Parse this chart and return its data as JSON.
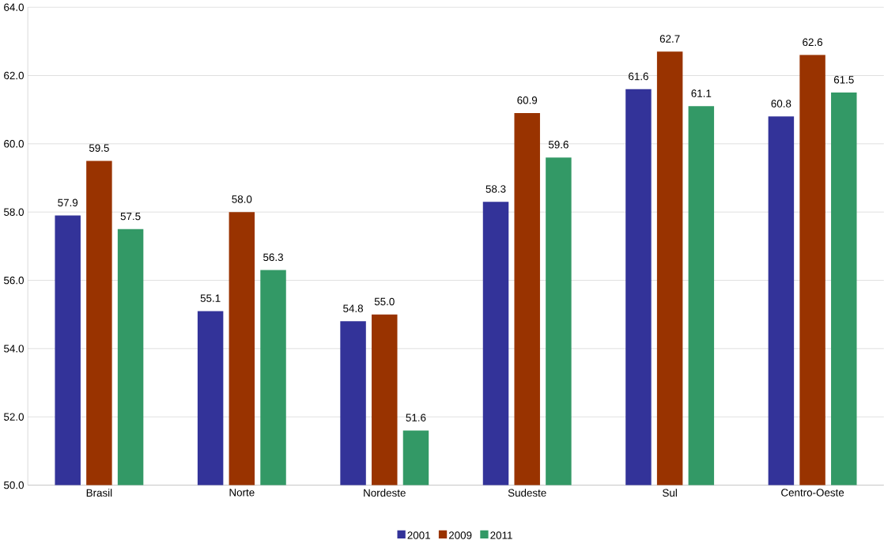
{
  "chart_data": {
    "type": "bar",
    "categories": [
      "Brasil",
      "Norte",
      "Nordeste",
      "Sudeste",
      "Sul",
      "Centro-Oeste"
    ],
    "series": [
      {
        "name": "2001",
        "color": "#333399",
        "values": [
          57.9,
          55.1,
          54.8,
          58.3,
          61.6,
          60.8
        ],
        "value_labels": [
          "57.9",
          "55.1",
          "54.8",
          "58.3",
          "61.6",
          "60.8"
        ]
      },
      {
        "name": "2009",
        "color": "#993300",
        "values": [
          59.5,
          58.0,
          55.0,
          60.9,
          62.7,
          62.6
        ],
        "value_labels": [
          "59.5",
          "58.0",
          "55.0",
          "60.9",
          "62.7",
          "62.6"
        ]
      },
      {
        "name": "2011",
        "color": "#339966",
        "values": [
          57.5,
          56.3,
          51.6,
          59.6,
          61.1,
          61.5
        ],
        "value_labels": [
          "57.5",
          "56.3",
          "51.6",
          "59.6",
          "61.1",
          "61.5"
        ]
      }
    ],
    "ylim": [
      50,
      64
    ],
    "yticks": [
      {
        "value": 50,
        "label": "50.0"
      },
      {
        "value": 52,
        "label": "52.0"
      },
      {
        "value": 54,
        "label": "54.0"
      },
      {
        "value": 56,
        "label": "56.0"
      },
      {
        "value": 58,
        "label": "58.0"
      },
      {
        "value": 60,
        "label": "60.0"
      },
      {
        "value": 62,
        "label": "62.0"
      },
      {
        "value": 64,
        "label": "64.0"
      }
    ],
    "grid": "y",
    "legend": "bottom"
  }
}
